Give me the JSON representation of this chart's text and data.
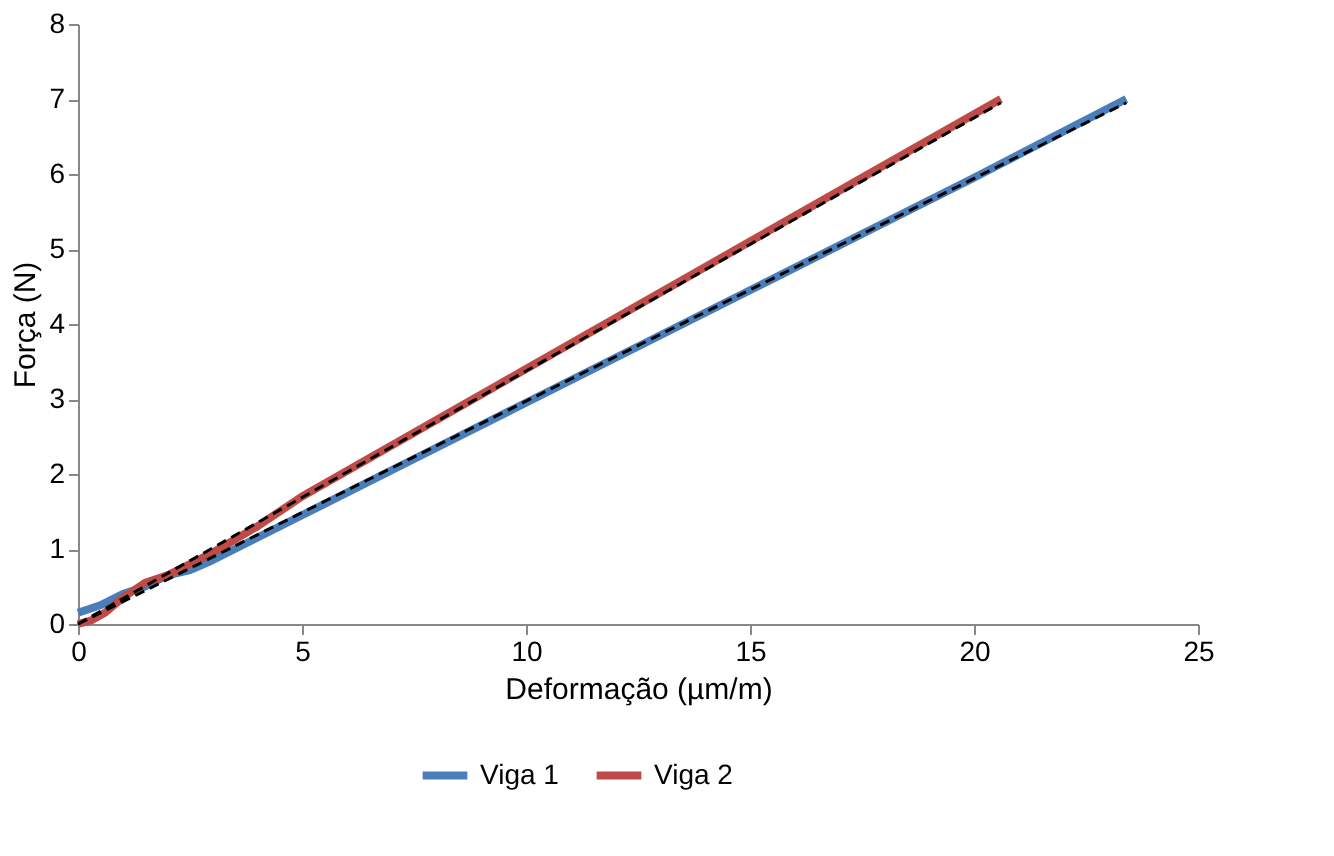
{
  "chart_data": {
    "type": "line",
    "xlabel": "Deformação (µm/m)",
    "ylabel": "Força (N)",
    "xlim": [
      0,
      25
    ],
    "xticks": [
      0,
      5,
      10,
      15,
      20,
      25
    ],
    "ylim": [
      0,
      8
    ],
    "yticks": [
      0,
      1,
      2,
      3,
      4,
      5,
      6,
      7,
      8
    ],
    "grid": false,
    "legend": "bottom",
    "marker": "none",
    "series": [
      {
        "name": "Viga 1",
        "color": "#4a7ebb",
        "line_style": "solid",
        "x": [
          0,
          0.5,
          1,
          1.5,
          2,
          2.5,
          3,
          4,
          5,
          7.5,
          10,
          12.5,
          15,
          17.5,
          20,
          23.4
        ],
        "values": [
          0.15,
          0.25,
          0.4,
          0.5,
          0.65,
          0.72,
          0.85,
          1.15,
          1.45,
          2.2,
          2.95,
          3.7,
          4.45,
          5.2,
          5.95,
          7.0
        ]
      },
      {
        "name": "Viga 2",
        "color": "#be4b48",
        "line_style": "solid",
        "x": [
          0,
          0.3,
          0.6,
          1,
          1.5,
          2,
          2.5,
          3,
          4,
          5,
          7.5,
          10,
          12.5,
          15,
          17.5,
          20.6
        ],
        "values": [
          0,
          0.05,
          0.15,
          0.35,
          0.55,
          0.65,
          0.8,
          0.95,
          1.3,
          1.7,
          2.55,
          3.4,
          4.25,
          5.1,
          5.95,
          7.0
        ]
      },
      {
        "color": "#000000",
        "line_style": "dashed",
        "x": [
          0,
          23.4
        ],
        "values": [
          0,
          6.95
        ]
      },
      {
        "color": "#000000",
        "line_style": "dashed",
        "x": [
          0,
          20.6
        ],
        "values": [
          0,
          6.95
        ]
      }
    ]
  }
}
